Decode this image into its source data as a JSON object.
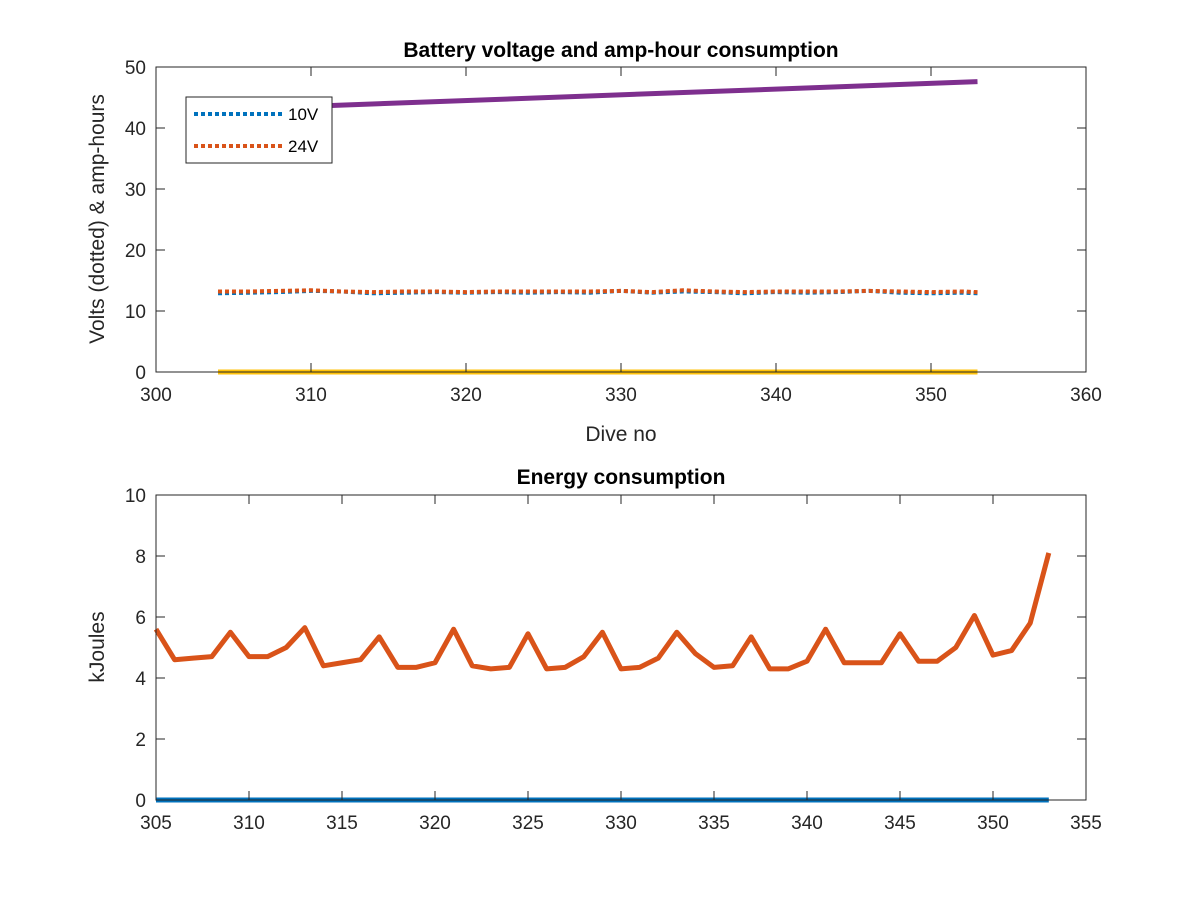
{
  "chart_data": [
    {
      "type": "line",
      "title": "Battery voltage and amp-hour consumption",
      "xlabel": "Dive no",
      "ylabel": "Volts (dotted) & amp-hours",
      "xlim": [
        300,
        360
      ],
      "ylim": [
        0,
        50
      ],
      "xticks": [
        300,
        310,
        320,
        330,
        340,
        350,
        360
      ],
      "yticks": [
        0,
        10,
        20,
        30,
        40,
        50
      ],
      "grid": false,
      "legend": {
        "placement": "top-left",
        "entries": [
          "10V",
          "24V"
        ]
      },
      "series": [
        {
          "name": "10V",
          "style": "dotted",
          "color": "#0072BD",
          "x": [
            304,
            306,
            308,
            310,
            312,
            314,
            316,
            318,
            320,
            322,
            324,
            326,
            328,
            330,
            332,
            334,
            336,
            338,
            340,
            342,
            344,
            346,
            348,
            350,
            352,
            353
          ],
          "y": [
            12.9,
            13.0,
            13.1,
            13.3,
            13.2,
            12.9,
            13.0,
            13.1,
            13.0,
            13.1,
            13.0,
            13.1,
            13.0,
            13.3,
            13.0,
            13.2,
            13.1,
            12.9,
            13.1,
            13.0,
            13.1,
            13.3,
            13.0,
            12.9,
            13.0,
            12.9
          ]
        },
        {
          "name": "24V",
          "style": "dotted",
          "color": "#D95319",
          "x": [
            304,
            306,
            308,
            310,
            312,
            314,
            316,
            318,
            320,
            322,
            324,
            326,
            328,
            330,
            332,
            334,
            336,
            338,
            340,
            342,
            344,
            346,
            348,
            350,
            352,
            353
          ],
          "y": [
            13.2,
            13.2,
            13.3,
            13.4,
            13.2,
            13.1,
            13.2,
            13.2,
            13.1,
            13.2,
            13.2,
            13.2,
            13.2,
            13.3,
            13.1,
            13.4,
            13.2,
            13.1,
            13.2,
            13.2,
            13.2,
            13.3,
            13.2,
            13.1,
            13.2,
            13.1
          ]
        },
        {
          "style": "solid",
          "color": "#FFC20A",
          "x": [
            304,
            353
          ],
          "y": [
            0,
            0
          ]
        },
        {
          "style": "solid",
          "color": "#7E2F8E",
          "x": [
            304,
            353
          ],
          "y": [
            43.0,
            47.6
          ]
        }
      ]
    },
    {
      "type": "line",
      "title": "Energy consumption",
      "xlabel": "",
      "ylabel": "kJoules",
      "xlim": [
        305,
        355
      ],
      "ylim": [
        0,
        10
      ],
      "xticks": [
        305,
        310,
        315,
        320,
        325,
        330,
        335,
        340,
        345,
        350,
        355
      ],
      "yticks": [
        0,
        2,
        4,
        6,
        8,
        10
      ],
      "grid": false,
      "series": [
        {
          "style": "solid",
          "color": "#0072BD",
          "x": [
            305,
            353
          ],
          "y": [
            0,
            0
          ]
        },
        {
          "style": "solid",
          "color": "#D95319",
          "x": [
            305,
            306,
            307,
            308,
            309,
            310,
            311,
            312,
            313,
            314,
            315,
            316,
            317,
            318,
            319,
            320,
            321,
            322,
            323,
            324,
            325,
            326,
            327,
            328,
            329,
            330,
            331,
            332,
            333,
            334,
            335,
            336,
            337,
            338,
            339,
            340,
            341,
            342,
            343,
            344,
            345,
            346,
            347,
            348,
            349,
            350,
            351,
            352,
            353
          ],
          "y": [
            5.6,
            4.6,
            4.65,
            4.7,
            5.5,
            4.7,
            4.7,
            5.0,
            5.65,
            4.4,
            4.5,
            4.6,
            5.35,
            4.35,
            4.35,
            4.5,
            5.6,
            4.4,
            4.3,
            4.35,
            5.45,
            4.3,
            4.35,
            4.7,
            5.5,
            4.3,
            4.35,
            4.65,
            5.5,
            4.8,
            4.35,
            4.4,
            5.35,
            4.3,
            4.3,
            4.55,
            5.6,
            4.5,
            4.5,
            4.5,
            5.45,
            4.55,
            4.55,
            5.0,
            6.05,
            4.75,
            4.9,
            5.8,
            8.1
          ]
        }
      ]
    }
  ]
}
